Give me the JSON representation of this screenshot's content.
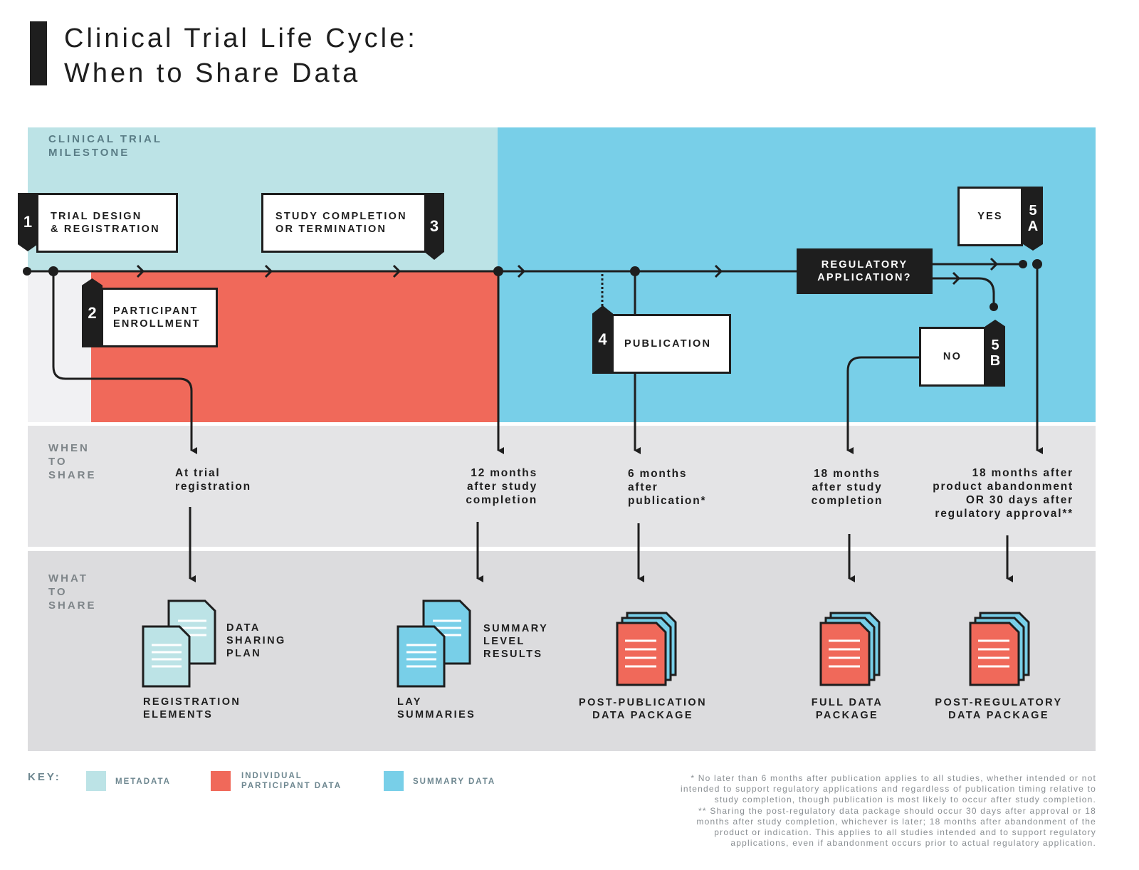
{
  "title": {
    "line1": "Clinical Trial Life Cycle:",
    "line2": "When to Share Data"
  },
  "sections": {
    "milestone": [
      "CLINICAL TRIAL",
      "MILESTONE"
    ],
    "when": [
      "WHEN",
      "TO",
      "SHARE"
    ],
    "what": [
      "WHAT",
      "TO",
      "SHARE"
    ]
  },
  "milestones": {
    "m1": {
      "tag": "1",
      "lines": [
        "TRIAL DESIGN",
        "& REGISTRATION"
      ]
    },
    "m2": {
      "tag": "2",
      "lines": [
        "PARTICIPANT",
        "ENROLLMENT"
      ]
    },
    "m3": {
      "tag": "3",
      "lines": [
        "STUDY COMPLETION",
        "OR TERMINATION"
      ]
    },
    "m4": {
      "tag": "4",
      "lines": [
        "PUBLICATION"
      ]
    },
    "regulatory": [
      "REGULATORY",
      "APPLICATION?"
    ],
    "m5a": {
      "tag": [
        "5",
        "A"
      ],
      "label": "YES"
    },
    "m5b": {
      "tag": [
        "5",
        "B"
      ],
      "label": "NO"
    }
  },
  "when_to_share": [
    [
      "At trial",
      "registration"
    ],
    [
      "12 months",
      "after study",
      "completion"
    ],
    [
      "6 months",
      "after",
      "publication*"
    ],
    [
      "18 months",
      "after study",
      "completion"
    ],
    [
      "18 months after",
      "product abandonment",
      "OR 30 days after",
      "regulatory approval**"
    ]
  ],
  "what_to_share": {
    "data_sharing_plan": [
      "DATA",
      "SHARING",
      "PLAN"
    ],
    "registration_elements": [
      "REGISTRATION",
      "ELEMENTS"
    ],
    "summary_level_results": [
      "SUMMARY",
      "LEVEL",
      "RESULTS"
    ],
    "lay_summaries": [
      "LAY",
      "SUMMARIES"
    ],
    "post_publication": [
      "POST-PUBLICATION",
      "DATA PACKAGE"
    ],
    "full_data": [
      "FULL DATA",
      "PACKAGE"
    ],
    "post_regulatory": [
      "POST-REGULATORY",
      "DATA PACKAGE"
    ]
  },
  "key": {
    "label": "KEY:",
    "metadata": "METADATA",
    "ipd": [
      "INDIVIDUAL",
      "PARTICIPANT DATA"
    ],
    "summary": "SUMMARY DATA"
  },
  "footnotes": [
    "* No later than 6 months after publication applies to all studies, whether intended or not",
    "intended to support regulatory applications and regardless of publication timing relative to",
    "study completion, though publication is most likely to occur after study completion.",
    "** Sharing the post-regulatory data package should occur 30 days after approval or 18",
    "months after study completion, whichever is later; 18 months after abandonment of the",
    "product or indication. This applies to all studies intended and to support regulatory",
    "applications, even if abandonment occurs prior to actual regulatory application."
  ],
  "colors": {
    "metadata": "#bce3e6",
    "ipd": "#f0695a",
    "summary": "#78cfe8",
    "gray_band": "#e4e4e6",
    "dark": "#1e1e1e"
  }
}
